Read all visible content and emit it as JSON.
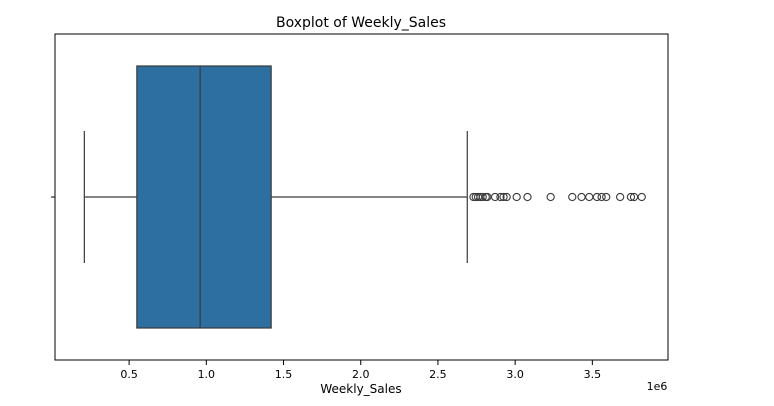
{
  "chart_data": {
    "type": "boxplot",
    "title": "Boxplot of Weekly_Sales",
    "xlabel": "Weekly_Sales",
    "ylabel": "",
    "x_scale_label": "1e6",
    "xlim": [
      20000,
      3990000
    ],
    "xticks": [
      500000,
      1000000,
      1500000,
      2000000,
      2500000,
      3000000,
      3500000
    ],
    "xtick_labels": [
      "0.5",
      "1.0",
      "1.5",
      "2.0",
      "2.5",
      "3.0",
      "3.5"
    ],
    "grid": false,
    "orientation": "horizontal",
    "box_color": "#2e6fa2",
    "stats": {
      "whisker_low": 210000,
      "q1": 550000,
      "median": 960000,
      "q3": 1420000,
      "whisker_high": 2690000
    },
    "outliers": [
      2730000,
      2745000,
      2760000,
      2775000,
      2790000,
      2810000,
      2820000,
      2870000,
      2905000,
      2925000,
      2945000,
      3010000,
      3080000,
      3230000,
      3370000,
      3430000,
      3480000,
      3530000,
      3560000,
      3590000,
      3680000,
      3750000,
      3770000,
      3820000
    ]
  }
}
